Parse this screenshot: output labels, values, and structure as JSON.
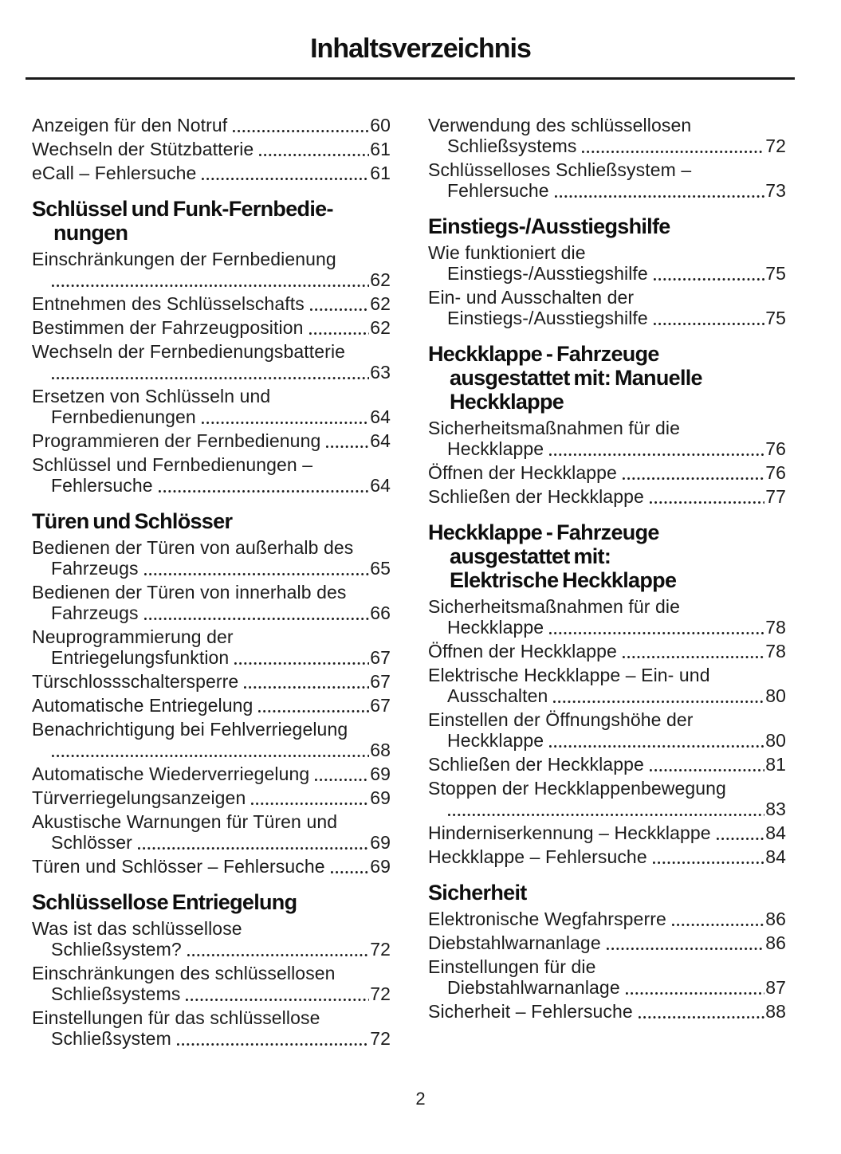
{
  "title": "Inhaltsverzeichnis",
  "page_number": "2",
  "ink_color": "#1c1c1c",
  "columns": [
    {
      "blocks": [
        {
          "entries": [
            {
              "last": "Anzeigen für den Notruf",
              "page": "60"
            },
            {
              "last": "Wechseln der Stützbatterie",
              "page": "61"
            },
            {
              "last": "eCall – Fehlersuche",
              "page": "61"
            }
          ]
        },
        {
          "heading": [
            "Schlüssel und Funk-Fernbedie-",
            "nungen"
          ],
          "entries": [
            {
              "pre": [
                "Einschränkungen der Fernbedienung"
              ],
              "last": "",
              "page": "62"
            },
            {
              "last": "Entnehmen des Schlüsselschafts",
              "page": "62"
            },
            {
              "last": "Bestimmen der Fahrzeugposition",
              "page": "62"
            },
            {
              "pre": [
                "Wechseln der Fernbedienungsbatterie"
              ],
              "last": "",
              "page": "63"
            },
            {
              "pre": [
                "Ersetzen von Schlüsseln und"
              ],
              "last": "Fernbedienungen",
              "page": "64"
            },
            {
              "last": "Programmieren der Fernbedienung",
              "page": "64"
            },
            {
              "pre": [
                "Schlüssel und Fernbedienungen –"
              ],
              "last": "Fehlersuche",
              "page": "64"
            }
          ]
        },
        {
          "heading": [
            "Türen und Schlösser"
          ],
          "entries": [
            {
              "pre": [
                "Bedienen der Türen von außerhalb des"
              ],
              "last": "Fahrzeugs",
              "page": "65"
            },
            {
              "pre": [
                "Bedienen der Türen von innerhalb des"
              ],
              "last": "Fahrzeugs",
              "page": "66"
            },
            {
              "pre": [
                "Neuprogrammierung der"
              ],
              "last": "Entriegelungsfunktion",
              "page": "67"
            },
            {
              "last": "Türschlossschaltersperre",
              "page": "67"
            },
            {
              "last": "Automatische Entriegelung",
              "page": "67"
            },
            {
              "pre": [
                "Benachrichtigung bei Fehlverriegelung"
              ],
              "last": "",
              "page": "68"
            },
            {
              "last": "Automatische Wiederverriegelung",
              "page": "69"
            },
            {
              "last": "Türverriegelungsanzeigen",
              "page": "69"
            },
            {
              "pre": [
                "Akustische Warnungen für Türen und"
              ],
              "last": "Schlösser",
              "page": "69"
            },
            {
              "last": "Türen und Schlösser – Fehlersuche",
              "page": "69"
            }
          ]
        },
        {
          "heading": [
            "Schlüssellose Entriegelung"
          ],
          "entries": [
            {
              "pre": [
                "Was ist das schlüssellose"
              ],
              "last": "Schließsystem?",
              "page": "72"
            },
            {
              "pre": [
                "Einschränkungen des schlüssellosen"
              ],
              "last": "Schließsystems",
              "page": "72"
            },
            {
              "pre": [
                "Einstellungen für das schlüssellose"
              ],
              "last": "Schließsystem",
              "page": "72"
            }
          ]
        }
      ]
    },
    {
      "blocks": [
        {
          "entries": [
            {
              "pre": [
                "Verwendung des schlüssellosen"
              ],
              "last": "Schließsystems",
              "page": "72"
            },
            {
              "pre": [
                "Schlüsselloses Schließsystem –"
              ],
              "last": "Fehlersuche",
              "page": "73"
            }
          ]
        },
        {
          "heading": [
            "Einstiegs-/Ausstiegshilfe"
          ],
          "entries": [
            {
              "pre": [
                "Wie funktioniert die"
              ],
              "last": "Einstiegs-/Ausstiegshilfe",
              "page": "75"
            },
            {
              "pre": [
                "Ein- und Ausschalten der"
              ],
              "last": "Einstiegs-/Ausstiegshilfe",
              "page": "75"
            }
          ]
        },
        {
          "heading": [
            "Heckklappe - Fahrzeuge",
            "ausgestattet mit: Manuelle",
            "Heckklappe"
          ],
          "entries": [
            {
              "pre": [
                "Sicherheitsmaßnahmen für die"
              ],
              "last": "Heckklappe",
              "page": "76"
            },
            {
              "last": "Öffnen der Heckklappe",
              "page": "76"
            },
            {
              "last": "Schließen der Heckklappe",
              "page": "77"
            }
          ]
        },
        {
          "heading": [
            "Heckklappe - Fahrzeuge",
            "ausgestattet mit:",
            "Elektrische Heckklappe"
          ],
          "entries": [
            {
              "pre": [
                "Sicherheitsmaßnahmen für die"
              ],
              "last": "Heckklappe",
              "page": "78"
            },
            {
              "last": "Öffnen der Heckklappe",
              "page": "78"
            },
            {
              "pre": [
                "Elektrische Heckklappe – Ein- und"
              ],
              "last": "Ausschalten",
              "page": "80"
            },
            {
              "pre": [
                "Einstellen der Öffnungshöhe der"
              ],
              "last": "Heckklappe",
              "page": "80"
            },
            {
              "last": "Schließen der Heckklappe",
              "page": "81"
            },
            {
              "pre": [
                "Stoppen der Heckklappenbewegung"
              ],
              "last": "",
              "page": "83"
            },
            {
              "last": "Hinderniserkennung – Heckklappe",
              "page": "84"
            },
            {
              "last": "Heckklappe – Fehlersuche",
              "page": "84"
            }
          ]
        },
        {
          "heading": [
            "Sicherheit"
          ],
          "entries": [
            {
              "last": "Elektronische Wegfahrsperre",
              "page": "86"
            },
            {
              "last": "Diebstahlwarnanlage",
              "page": "86"
            },
            {
              "pre": [
                "Einstellungen für die"
              ],
              "last": "Diebstahlwarnanlage",
              "page": "87"
            },
            {
              "last": "Sicherheit – Fehlersuche",
              "page": "88"
            }
          ]
        }
      ]
    }
  ]
}
